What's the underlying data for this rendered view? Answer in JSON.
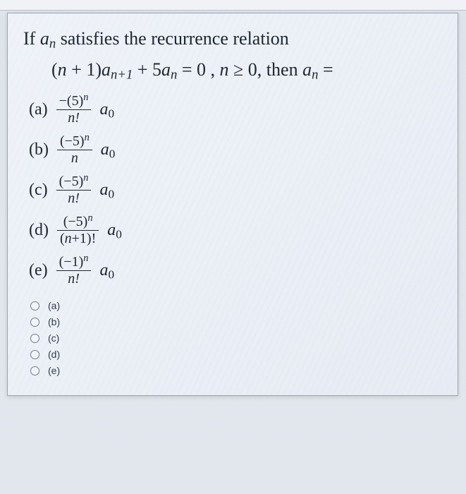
{
  "stem_prefix": "If ",
  "stem_var": "a",
  "stem_sub": "n",
  "stem_suffix": " satisfies the recurrence relation",
  "eq_lhs1": "(",
  "eq_lhs_n": "n",
  "eq_lhs_plus1": " + 1)",
  "eq_a": "a",
  "eq_sub_np1": "n+1",
  "eq_plus": " + 5",
  "eq_sub_n": "n",
  "eq_rhs": " = 0 , ",
  "eq_cond_n": "n",
  "eq_ge": " ≥ 0, then ",
  "eq_eqs": " =",
  "optA_label": "(a)",
  "optA_num_pre": "−(5)",
  "optA_num_sup": "n",
  "optA_den": "n!",
  "optB_label": "(b)",
  "optB_num_pre": "(−5)",
  "optB_num_sup": "n",
  "optB_den": "n",
  "optC_label": "(c)",
  "optC_num_pre": "(−5)",
  "optC_num_sup": "n",
  "optC_den": "n!",
  "optD_label": "(d)",
  "optD_num_pre": "(−5)",
  "optD_num_sup": "n",
  "optD_den_pre": "(",
  "optD_den_n": "n",
  "optD_den_post": "+1)!",
  "optE_label": "(e)",
  "optE_num_pre": "(−1)",
  "optE_num_sup": "n",
  "optE_den": "n!",
  "a0_a": "a",
  "a0_0": "0",
  "radio_labels": [
    "(a)",
    "(b)",
    "(c)",
    "(d)",
    "(e)"
  ]
}
